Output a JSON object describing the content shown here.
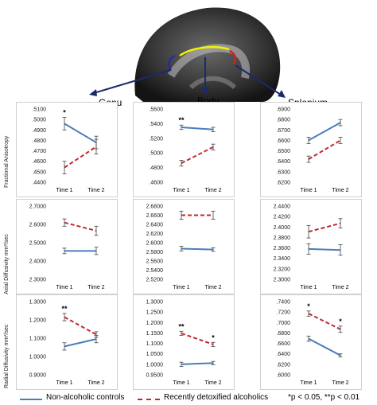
{
  "regions": [
    "Genu",
    "Body",
    "Splenium"
  ],
  "ylabels": [
    "Fractional Anisotropy",
    "Axial Diffusivity  mm²/sec",
    "Radial Diffusivity mm²/sec"
  ],
  "legend": {
    "controls": "Non-alcoholic controls",
    "alcoholics": "Recently detoxified alcoholics",
    "significance": "*p < 0.05, **p < 0.01"
  },
  "colors": {
    "controls": "#4a7ebb",
    "alcoholics": "#c0282d"
  },
  "chart_data": [
    {
      "type": "line",
      "row": 0,
      "col": 0,
      "categories": [
        "Time 1",
        "Time 2"
      ],
      "yticks": [
        ".4400",
        ".4500",
        ".4600",
        ".4700",
        ".4800",
        ".4900",
        ".5000",
        ".5100"
      ],
      "ylim": [
        0.44,
        0.51
      ],
      "series": [
        {
          "name": "Non-alcoholic controls",
          "values": [
            0.496,
            0.478
          ],
          "err": [
            0.006,
            0.006
          ]
        },
        {
          "name": "Recently detoxified alcoholics",
          "values": [
            0.454,
            0.474
          ],
          "err": [
            0.006,
            0.007
          ]
        }
      ],
      "annotations": [
        {
          "x": "Time 1",
          "text": "*"
        }
      ]
    },
    {
      "type": "line",
      "row": 0,
      "col": 1,
      "categories": [
        "Time 1",
        "Time 2"
      ],
      "yticks": [
        ".4600",
        ".4800",
        ".5000",
        ".5200",
        ".5400",
        ".5600"
      ],
      "ylim": [
        0.46,
        0.56
      ],
      "series": [
        {
          "name": "Non-alcoholic controls",
          "values": [
            0.535,
            0.532
          ],
          "err": [
            0.003,
            0.003
          ]
        },
        {
          "name": "Recently detoxified alcoholics",
          "values": [
            0.486,
            0.508
          ],
          "err": [
            0.004,
            0.004
          ]
        }
      ],
      "annotations": [
        {
          "x": "Time 1",
          "text": "**"
        }
      ]
    },
    {
      "type": "line",
      "row": 0,
      "col": 2,
      "categories": [
        "Time 1",
        "Time 2"
      ],
      "yticks": [
        ".6200",
        ".6300",
        ".6400",
        ".6500",
        ".6600",
        ".6700",
        ".6800",
        ".6900"
      ],
      "ylim": [
        0.62,
        0.69
      ],
      "series": [
        {
          "name": "Non-alcoholic controls",
          "values": [
            0.66,
            0.677
          ],
          "err": [
            0.003,
            0.003
          ]
        },
        {
          "name": "Recently detoxified alcoholics",
          "values": [
            0.642,
            0.66
          ],
          "err": [
            0.003,
            0.003
          ]
        }
      ],
      "annotations": []
    },
    {
      "type": "line",
      "row": 1,
      "col": 0,
      "categories": [
        "Time 1",
        "Time 2"
      ],
      "yticks": [
        "2.3000",
        "2.4000",
        "2.5000",
        "2.6000",
        "2.7000"
      ],
      "ylim": [
        2.3,
        2.7
      ],
      "series": [
        {
          "name": "Non-alcoholic controls",
          "values": [
            2.455,
            2.455
          ],
          "err": [
            0.015,
            0.02
          ]
        },
        {
          "name": "Recently detoxified alcoholics",
          "values": [
            2.61,
            2.565
          ],
          "err": [
            0.02,
            0.025
          ]
        }
      ],
      "annotations": []
    },
    {
      "type": "line",
      "row": 1,
      "col": 1,
      "categories": [
        "Time 1",
        "Time 2"
      ],
      "yticks": [
        "2.5200",
        "2.5400",
        "2.5600",
        "2.5800",
        "2.6000",
        "2.6200",
        "2.6400",
        "2.6600",
        "2.6800"
      ],
      "ylim": [
        2.52,
        2.68
      ],
      "series": [
        {
          "name": "Non-alcoholic controls",
          "values": [
            2.587,
            2.585
          ],
          "err": [
            0.005,
            0.004
          ]
        },
        {
          "name": "Recently detoxified alcoholics",
          "values": [
            2.66,
            2.66
          ],
          "err": [
            0.009,
            0.009
          ]
        }
      ],
      "annotations": []
    },
    {
      "type": "line",
      "row": 1,
      "col": 2,
      "categories": [
        "Time 1",
        "Time 2"
      ],
      "yticks": [
        "2.3000",
        "2.3200",
        "2.3400",
        "2.3600",
        "2.3800",
        "2.4000",
        "2.4200",
        "2.4400"
      ],
      "ylim": [
        2.3,
        2.44
      ],
      "series": [
        {
          "name": "Non-alcoholic controls",
          "values": [
            2.358,
            2.356
          ],
          "err": [
            0.01,
            0.01
          ]
        },
        {
          "name": "Recently detoxified alcoholics",
          "values": [
            2.391,
            2.407
          ],
          "err": [
            0.012,
            0.009
          ]
        }
      ],
      "annotations": []
    },
    {
      "type": "line",
      "row": 2,
      "col": 0,
      "categories": [
        "Time 1",
        "Time 2"
      ],
      "yticks": [
        "0.9000",
        "1.0000",
        "1.1000",
        "1.2000",
        "1.3000"
      ],
      "ylim": [
        0.9,
        1.3
      ],
      "series": [
        {
          "name": "Non-alcoholic controls",
          "values": [
            1.055,
            1.095
          ],
          "err": [
            0.02,
            0.02
          ]
        },
        {
          "name": "Recently detoxified alcoholics",
          "values": [
            1.215,
            1.12
          ],
          "err": [
            0.02,
            0.015
          ]
        }
      ],
      "annotations": [
        {
          "x": "Time 1",
          "text": "**"
        }
      ]
    },
    {
      "type": "line",
      "row": 2,
      "col": 1,
      "categories": [
        "Time 1",
        "Time 2"
      ],
      "yticks": [
        "0.9500",
        "1.0000",
        "1.0500",
        "1.1000",
        "1.1500",
        "1.2000",
        "1.2500",
        "1.3000"
      ],
      "ylim": [
        0.95,
        1.3
      ],
      "series": [
        {
          "name": "Non-alcoholic controls",
          "values": [
            1.0,
            1.006
          ],
          "err": [
            0.01,
            0.008
          ]
        },
        {
          "name": "Recently detoxified alcoholics",
          "values": [
            1.148,
            1.095
          ],
          "err": [
            0.01,
            0.01
          ]
        }
      ],
      "annotations": [
        {
          "x": "Time 1",
          "text": "**"
        },
        {
          "x": "Time 2",
          "text": "*"
        }
      ]
    },
    {
      "type": "line",
      "row": 2,
      "col": 2,
      "categories": [
        "Time 1",
        "Time 2"
      ],
      "yticks": [
        ".6000",
        ".6200",
        ".6400",
        ".6600",
        ".6800",
        ".7000",
        ".7200",
        ".7400"
      ],
      "ylim": [
        0.6,
        0.74
      ],
      "series": [
        {
          "name": "Non-alcoholic controls",
          "values": [
            0.669,
            0.637
          ],
          "err": [
            0.005,
            0.003
          ]
        },
        {
          "name": "Recently detoxified alcoholics",
          "values": [
            0.717,
            0.687
          ],
          "err": [
            0.005,
            0.006
          ]
        }
      ],
      "annotations": [
        {
          "x": "Time 1",
          "text": "*"
        },
        {
          "x": "Time 2",
          "text": "*"
        }
      ]
    }
  ]
}
